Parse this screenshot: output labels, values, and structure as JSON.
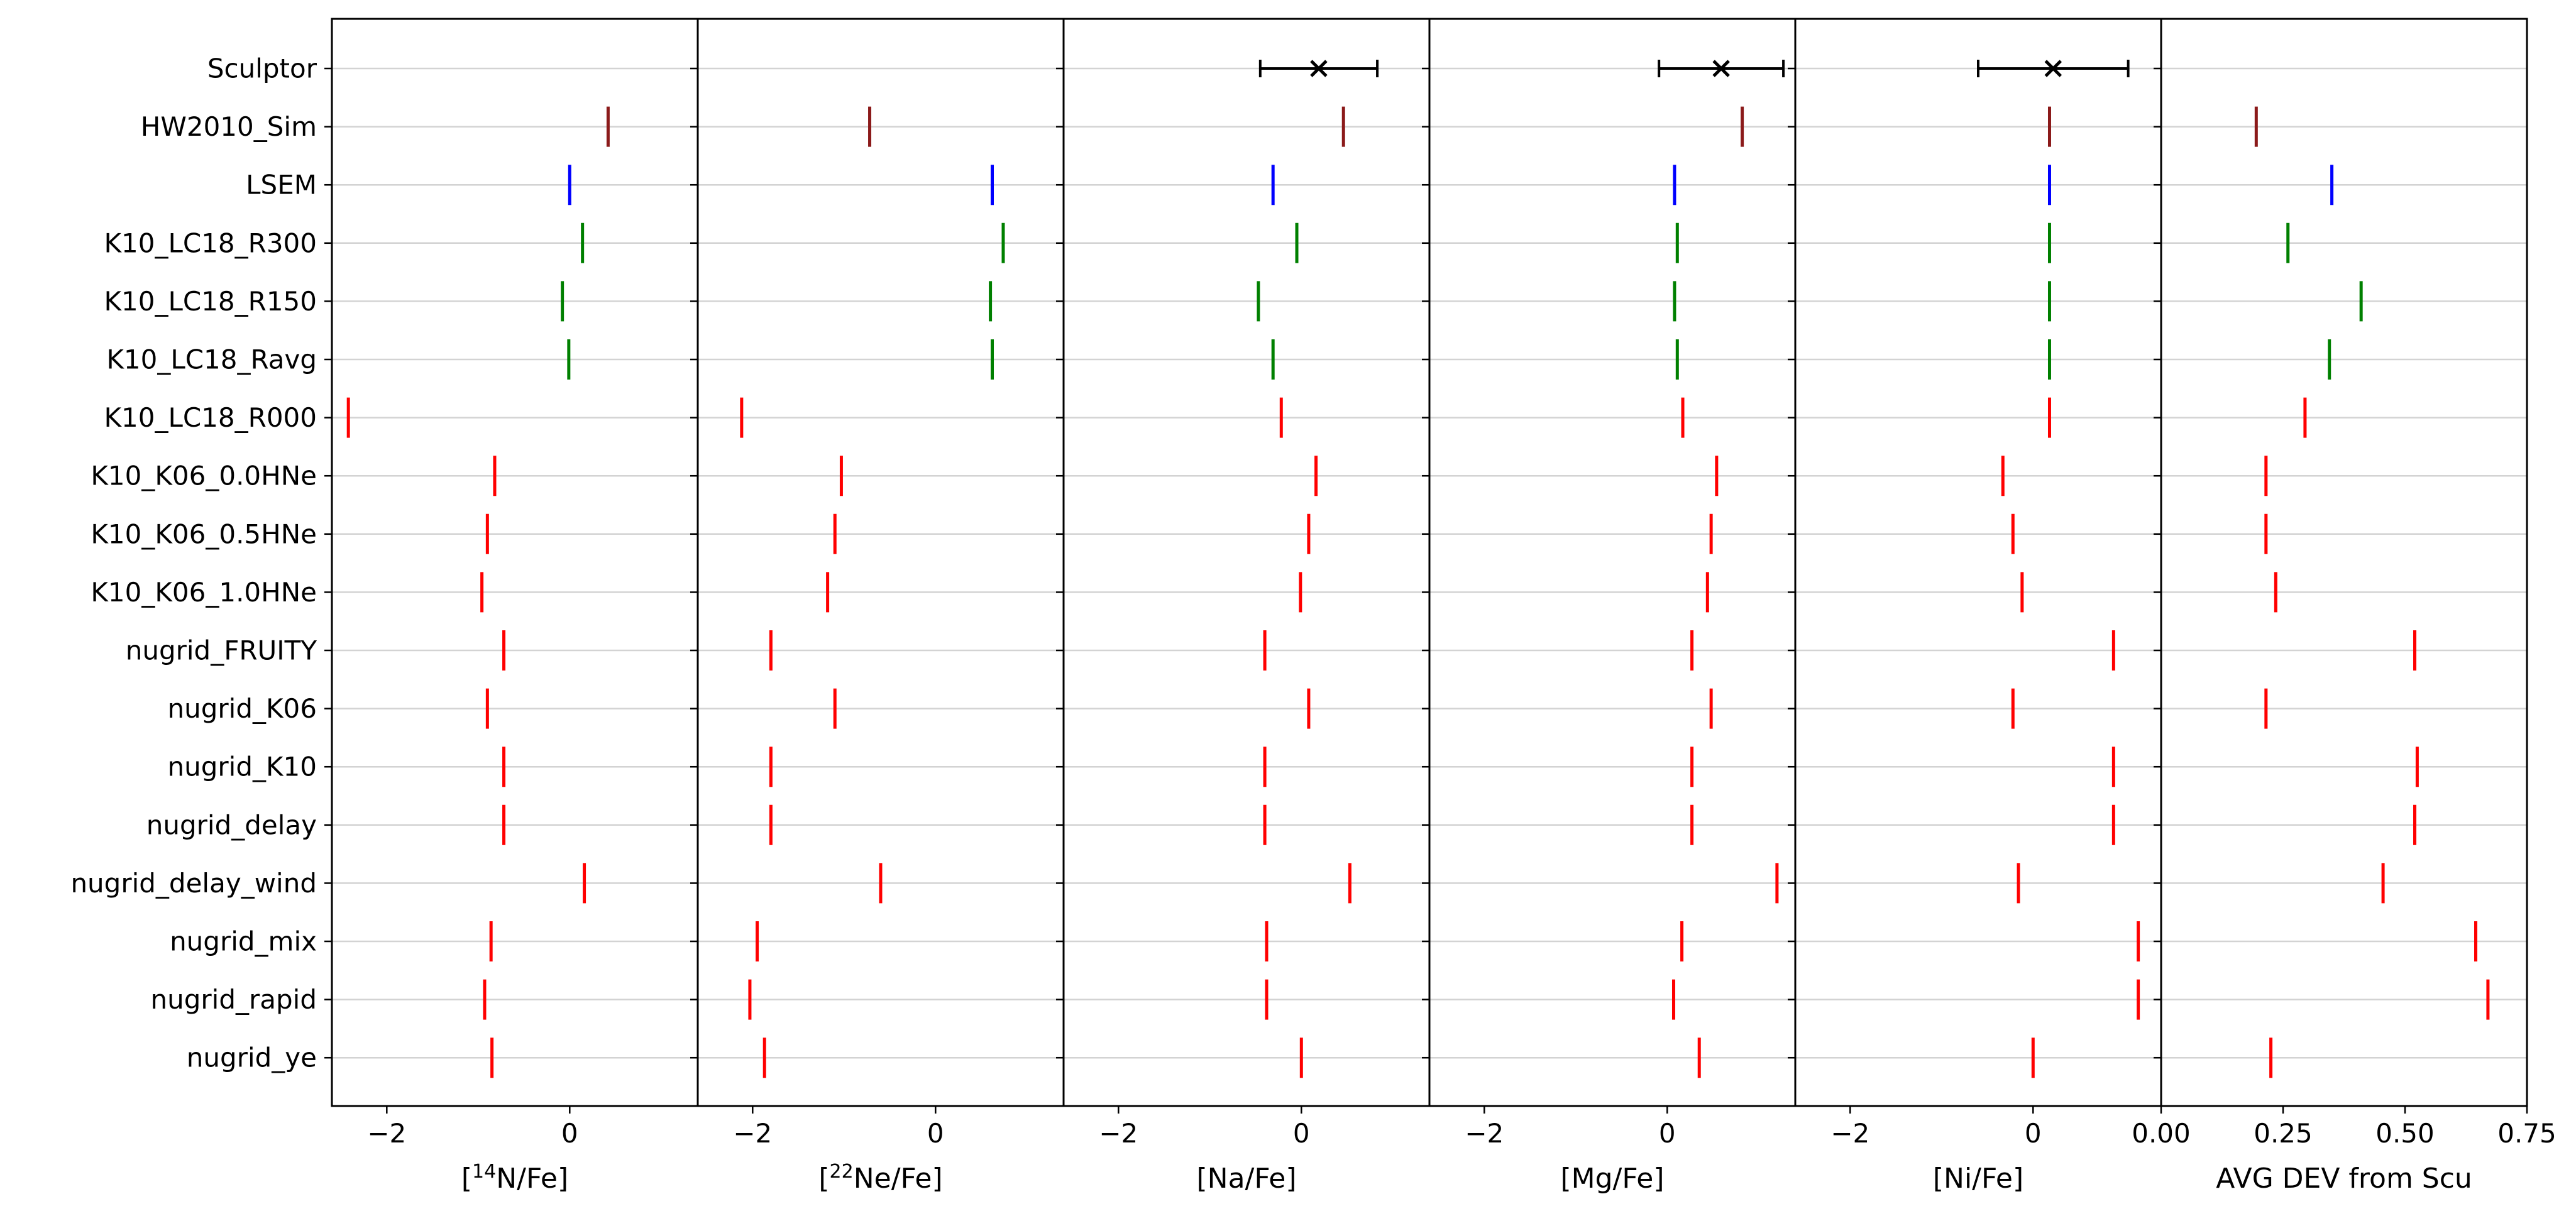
{
  "chart_data": {
    "type": "scatter",
    "categories": [
      "Sculptor",
      "HW2010_Sim",
      "LSEM",
      "K10_LC18_R300",
      "K10_LC18_R150",
      "K10_LC18_Ravg",
      "K10_LC18_R000",
      "K10_K06_0.0HNe",
      "K10_K06_0.5HNe",
      "K10_K06_1.0HNe",
      "nugrid_FRUITY",
      "nugrid_K06",
      "nugrid_K10",
      "nugrid_delay",
      "nugrid_delay_wind",
      "nugrid_mix",
      "nugrid_rapid",
      "nugrid_ye"
    ],
    "colors": [
      "#000000",
      "#8b1a1a",
      "#0000ff",
      "#008000",
      "#008000",
      "#008000",
      "#ff0000",
      "#ff0000",
      "#ff0000",
      "#ff0000",
      "#ff0000",
      "#ff0000",
      "#ff0000",
      "#ff0000",
      "#ff0000",
      "#ff0000",
      "#ff0000",
      "#ff0000"
    ],
    "grid": "horizontal",
    "panels": [
      {
        "xlabel_parts": [
          "[",
          "14",
          "N/Fe]"
        ],
        "xlim": [
          -2.6,
          1.4
        ],
        "xticks": [
          -2,
          0
        ],
        "xtick_labels": [
          "−2",
          "0"
        ],
        "values": [
          null,
          0.42,
          0.0,
          0.14,
          -0.08,
          -0.01,
          -2.42,
          -0.82,
          -0.9,
          -0.96,
          -0.72,
          -0.9,
          -0.72,
          -0.72,
          0.16,
          -0.86,
          -0.93,
          -0.85
        ]
      },
      {
        "xlabel_parts": [
          "[",
          "22",
          "Ne/Fe]"
        ],
        "xlim": [
          -2.6,
          1.4
        ],
        "xticks": [
          -2,
          0
        ],
        "xtick_labels": [
          "−2",
          "0"
        ],
        "values": [
          null,
          -0.72,
          0.62,
          0.74,
          0.6,
          0.62,
          -2.12,
          -1.03,
          -1.1,
          -1.18,
          -1.8,
          -1.1,
          -1.8,
          -1.8,
          -0.6,
          -1.95,
          -2.03,
          -1.87
        ]
      },
      {
        "xlabel_parts": [
          "[Na/Fe]"
        ],
        "xlim": [
          -2.6,
          1.4
        ],
        "xticks": [
          -2,
          0
        ],
        "xtick_labels": [
          "−2",
          "0"
        ],
        "sculptor": {
          "value": 0.19,
          "err_low": 0.64,
          "err_high": 0.64
        },
        "values": [
          null,
          0.46,
          -0.31,
          -0.05,
          -0.47,
          -0.31,
          -0.22,
          0.16,
          0.08,
          -0.01,
          -0.4,
          0.08,
          -0.4,
          -0.4,
          0.53,
          -0.38,
          -0.38,
          0.0
        ]
      },
      {
        "xlabel_parts": [
          "[Mg/Fe]"
        ],
        "xlim": [
          -2.6,
          1.4
        ],
        "xticks": [
          -2,
          0
        ],
        "xtick_labels": [
          "−2",
          "0"
        ],
        "sculptor": {
          "value": 0.59,
          "err_low": 0.68,
          "err_high": 0.68
        },
        "values": [
          null,
          0.82,
          0.08,
          0.11,
          0.08,
          0.11,
          0.17,
          0.54,
          0.48,
          0.44,
          0.27,
          0.48,
          0.27,
          0.27,
          1.2,
          0.16,
          0.07,
          0.35
        ]
      },
      {
        "xlabel_parts": [
          "[Ni/Fe]"
        ],
        "xlim": [
          -2.6,
          1.4
        ],
        "xticks": [
          -2,
          0
        ],
        "xtick_labels": [
          "−2",
          "0"
        ],
        "sculptor": {
          "value": 0.22,
          "err_low": 0.82,
          "err_high": 0.82
        },
        "values": [
          null,
          0.18,
          0.18,
          0.18,
          0.18,
          0.18,
          0.18,
          -0.33,
          -0.22,
          -0.12,
          0.88,
          -0.22,
          0.88,
          0.88,
          -0.16,
          1.15,
          1.15,
          0.0
        ]
      },
      {
        "xlabel_parts": [
          "AVG DEV from Scu"
        ],
        "xlim": [
          0.0,
          0.75
        ],
        "xticks": [
          0.0,
          0.25,
          0.5,
          0.75
        ],
        "xtick_labels": [
          "0.00",
          "0.25",
          "0.50",
          "0.75"
        ],
        "values": [
          null,
          0.195,
          0.35,
          0.26,
          0.41,
          0.345,
          0.295,
          0.215,
          0.215,
          0.235,
          0.52,
          0.215,
          0.525,
          0.52,
          0.455,
          0.645,
          0.67,
          0.225
        ]
      }
    ]
  }
}
